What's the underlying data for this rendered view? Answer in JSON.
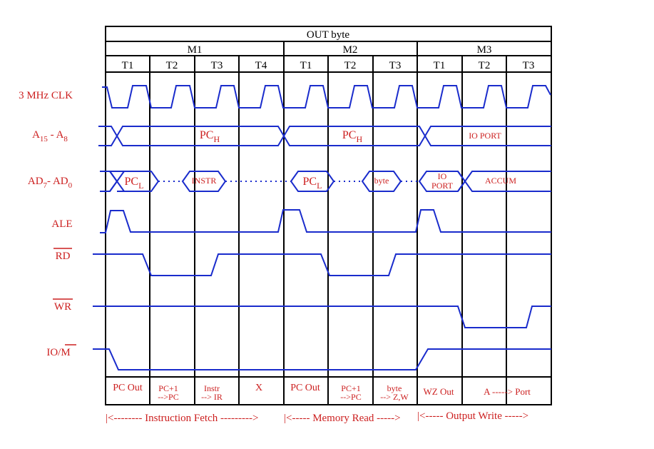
{
  "title": "OUT byte",
  "machine_cycles": [
    "M1",
    "M2",
    "M3"
  ],
  "t_states": [
    "T1",
    "T2",
    "T3",
    "T4",
    "T1",
    "T2",
    "T3",
    "T1",
    "T2",
    "T3"
  ],
  "signals": {
    "clk": "3 MHz CLK",
    "addr_high": {
      "a": "A",
      "a_sub": "15",
      "sep": " - ",
      "b": "A",
      "b_sub": "8"
    },
    "addr_data": {
      "a": "AD",
      "a_sub": "7",
      "sep": "- ",
      "b": "AD",
      "b_sub": "0"
    },
    "ale": "ALE",
    "rd": "RD",
    "wr": "WR",
    "io_m": {
      "a": "IO/",
      "b": "M"
    }
  },
  "bus_values": {
    "pch": {
      "main": "PC",
      "sub": "H"
    },
    "pcl": {
      "main": "PC",
      "sub": "L"
    },
    "instr": "INSTR",
    "byte": "byte",
    "io_port": "IO PORT",
    "io_port_line1": "IO",
    "io_port_line2": "PORT",
    "accum": "ACCUM"
  },
  "actions": [
    {
      "l1": "PC Out",
      "l2": ""
    },
    {
      "l1": "PC+1",
      "l2": "-->PC"
    },
    {
      "l1": "Instr",
      "l2": "--> IR"
    },
    {
      "l1": "X",
      "l2": ""
    },
    {
      "l1": "PC Out",
      "l2": ""
    },
    {
      "l1": "PC+1",
      "l2": "-->PC"
    },
    {
      "l1": "byte",
      "l2": "--> Z,W"
    },
    {
      "l1": "WZ Out",
      "l2": ""
    },
    {
      "l1": "A -----> Port",
      "l2": ""
    },
    {
      "l1": "",
      "l2": ""
    }
  ],
  "phases": [
    "|<-------- Instruction Fetch --------->",
    "|<----- Memory Read ----->",
    "|<----- Output Write ----->"
  ],
  "colors": {
    "wave": "#1a2ccc",
    "label": "#cc1f1f",
    "grid": "#000000"
  }
}
